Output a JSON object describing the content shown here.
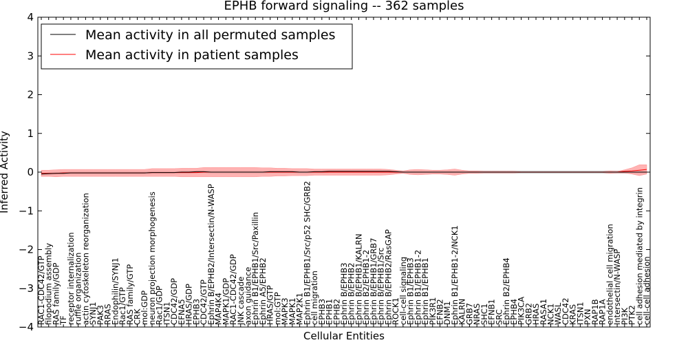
{
  "chart_data": {
    "type": "line",
    "title": "EPHB forward signaling -- 362 samples",
    "xlabel": "Cellular Entities",
    "ylabel": "Inferred Activity",
    "ylim": [
      -4,
      4
    ],
    "yticks": [
      "−4",
      "−3",
      "−2",
      "−1",
      "0",
      "1",
      "2",
      "3",
      "4"
    ],
    "grid": false,
    "legend_position": "top-left",
    "colors": {
      "permuted": "#000000",
      "patient": "#ff0000",
      "patient_band": "#ff9a9a",
      "permuted_band": "#cfcfcf"
    },
    "categories": [
      "RAC1-CDC42/GTP",
      "filopodium assembly",
      "RAS family/GDP",
      "TF",
      "receptor internalization",
      "ruffle organization",
      "actin cytoskeleton reorganization",
      "SYNJ1",
      "PAK3",
      "RRAS",
      "Endophilin/SYNJ1",
      "Rac1/GTP",
      "RAS family/GTP",
      "CRK",
      "mol:GDP",
      "neuron projection morphogenesis",
      "Rac1/GDP",
      "ITSN1",
      "CDC42/GDP",
      "EFNA5",
      "HRAS/GDP",
      "EPHB3",
      "CDC42/GTP",
      "Ephrin B/EPHB2/Intersectin/N-WASP",
      "MAP4K4",
      "MAPK1/GDP",
      "RAC1-CDC42/GDP",
      "JNK cascade",
      "axon guidance",
      "Ephrin B1/EPHB1/Src/Paxillin",
      "Ephrin A5/EPHB2",
      "HRAS/GTP",
      "mol:GTP",
      "MAPK3",
      "MAPK1",
      "MAP2K1",
      "Ephrin B1/EPHB1/Src/p52 SHC/GRB2",
      "cell migration",
      "EPHB3",
      "EPHB1",
      "EPHB2",
      "Ephrin B/EPHB3",
      "Ephrin B/EPHB2",
      "Ephrin B/EPHB1/KALRN",
      "Ephrin B2/EPHB1-2",
      "Ephrin B/EPHB1/GRB7",
      "Ephrin B/EPHB1/Src",
      "Ephrin B/EPHB2/RasGAP",
      "ROCK1",
      "cell-cell signaling",
      "Ephrin B1/EPHB3",
      "Ephrin B1/EPHB1-2",
      "Ephrin B1/EPHB1",
      "PIK3R1",
      "EFNB2",
      "DNM1",
      "Ephrin B1/EPHB1-2/NCK1",
      "KALRN",
      "GRB7",
      "NRAS",
      "SHC1",
      "EFNB1",
      "SRC",
      "Ephrin B2/EPHB4",
      "EPHB4",
      "PIK3CA",
      "GRB2",
      "HRAS",
      "RASA1",
      "NCK1",
      "WASL",
      "CDC42",
      "KRAS",
      "ITSN1",
      "PXN",
      "RAP1B",
      "RAP1A",
      "endothelial cell migration",
      "Intersectin/N-WASP",
      "PI3K",
      "PTK2",
      "cell adhesion mediated by integrin",
      "cell-cell adhesion"
    ],
    "series": [
      {
        "name": "Mean activity in all permuted samples",
        "values": [
          -0.05,
          -0.04,
          -0.03,
          -0.03,
          -0.02,
          -0.02,
          -0.02,
          -0.02,
          -0.02,
          -0.02,
          -0.02,
          -0.02,
          -0.02,
          -0.02,
          -0.02,
          -0.01,
          -0.01,
          -0.01,
          -0.01,
          0.0,
          0.0,
          0.01,
          0.01,
          0.0,
          0.0,
          0.0,
          0.0,
          0.0,
          0.0,
          0.0,
          0.0,
          0.01,
          0.01,
          0.01,
          0.01,
          0.0,
          0.0,
          0.01,
          0.01,
          0.02,
          0.02,
          0.02,
          0.02,
          0.02,
          0.02,
          0.02,
          0.02,
          0.02,
          0.01,
          0.0,
          0.0,
          0.0,
          0.0,
          0.0,
          0.0,
          0.0,
          0.0,
          0.0,
          0.0,
          0.0,
          0.0,
          0.0,
          0.0,
          0.0,
          0.0,
          0.0,
          0.0,
          0.0,
          0.0,
          0.0,
          0.0,
          0.0,
          0.0,
          0.0,
          0.0,
          0.0,
          0.0,
          0.0,
          0.0,
          0.0,
          0.0,
          0.0,
          0.0
        ]
      },
      {
        "name": "Mean activity in patient samples",
        "values": [
          -0.03,
          -0.03,
          -0.03,
          -0.02,
          -0.02,
          -0.02,
          -0.02,
          -0.02,
          -0.02,
          -0.02,
          -0.02,
          -0.02,
          -0.02,
          -0.02,
          -0.02,
          -0.01,
          -0.01,
          -0.01,
          -0.01,
          -0.01,
          -0.01,
          -0.01,
          0.0,
          0.0,
          0.0,
          0.0,
          0.0,
          0.0,
          0.0,
          0.0,
          0.0,
          0.0,
          0.0,
          0.0,
          0.0,
          0.0,
          0.0,
          0.0,
          0.0,
          0.0,
          0.0,
          0.0,
          0.0,
          0.0,
          0.0,
          0.0,
          0.0,
          0.0,
          0.0,
          0.0,
          0.0,
          0.0,
          0.0,
          0.0,
          0.0,
          0.0,
          0.0,
          0.0,
          0.0,
          0.0,
          0.0,
          0.0,
          0.0,
          0.0,
          0.0,
          0.0,
          0.0,
          0.0,
          0.0,
          0.0,
          0.0,
          0.0,
          0.0,
          0.0,
          0.0,
          0.0,
          0.0,
          0.0,
          0.0,
          0.02,
          0.03,
          0.05,
          0.07
        ]
      }
    ],
    "patient_band_halfwidth": [
      0.08,
      0.08,
      0.09,
      0.09,
      0.09,
      0.09,
      0.09,
      0.09,
      0.09,
      0.09,
      0.09,
      0.09,
      0.09,
      0.09,
      0.09,
      0.1,
      0.1,
      0.1,
      0.1,
      0.11,
      0.11,
      0.11,
      0.12,
      0.12,
      0.12,
      0.12,
      0.12,
      0.12,
      0.12,
      0.12,
      0.11,
      0.11,
      0.1,
      0.1,
      0.09,
      0.09,
      0.09,
      0.08,
      0.08,
      0.08,
      0.08,
      0.08,
      0.08,
      0.08,
      0.08,
      0.08,
      0.08,
      0.07,
      0.05,
      0.03,
      0.06,
      0.07,
      0.06,
      0.05,
      0.05,
      0.06,
      0.08,
      0.05,
      0.03,
      0.03,
      0.02,
      0.02,
      0.02,
      0.02,
      0.02,
      0.01,
      0.01,
      0.01,
      0.01,
      0.01,
      0.01,
      0.01,
      0.01,
      0.01,
      0.01,
      0.01,
      0.01,
      0.03,
      0.02,
      0.04,
      0.08,
      0.14,
      0.12
    ],
    "permuted_band_halfwidth": [
      0.04,
      0.04,
      0.04,
      0.04,
      0.04,
      0.04,
      0.04,
      0.04,
      0.04,
      0.04,
      0.04,
      0.04,
      0.04,
      0.04,
      0.04,
      0.04,
      0.04,
      0.04,
      0.04,
      0.04,
      0.04,
      0.04,
      0.04,
      0.04,
      0.04,
      0.04,
      0.04,
      0.04,
      0.04,
      0.04,
      0.04,
      0.04,
      0.04,
      0.04,
      0.04,
      0.04,
      0.04,
      0.04,
      0.04,
      0.04,
      0.04,
      0.04,
      0.04,
      0.04,
      0.04,
      0.04,
      0.04,
      0.04,
      0.04,
      0.04,
      0.04,
      0.04,
      0.04,
      0.04,
      0.04,
      0.04,
      0.04,
      0.04,
      0.04,
      0.04,
      0.04,
      0.04,
      0.04,
      0.04,
      0.04,
      0.04,
      0.04,
      0.04,
      0.04,
      0.04,
      0.04,
      0.04,
      0.04,
      0.04,
      0.04,
      0.04,
      0.04,
      0.04,
      0.04,
      0.04,
      0.04,
      0.04,
      0.04
    ]
  }
}
